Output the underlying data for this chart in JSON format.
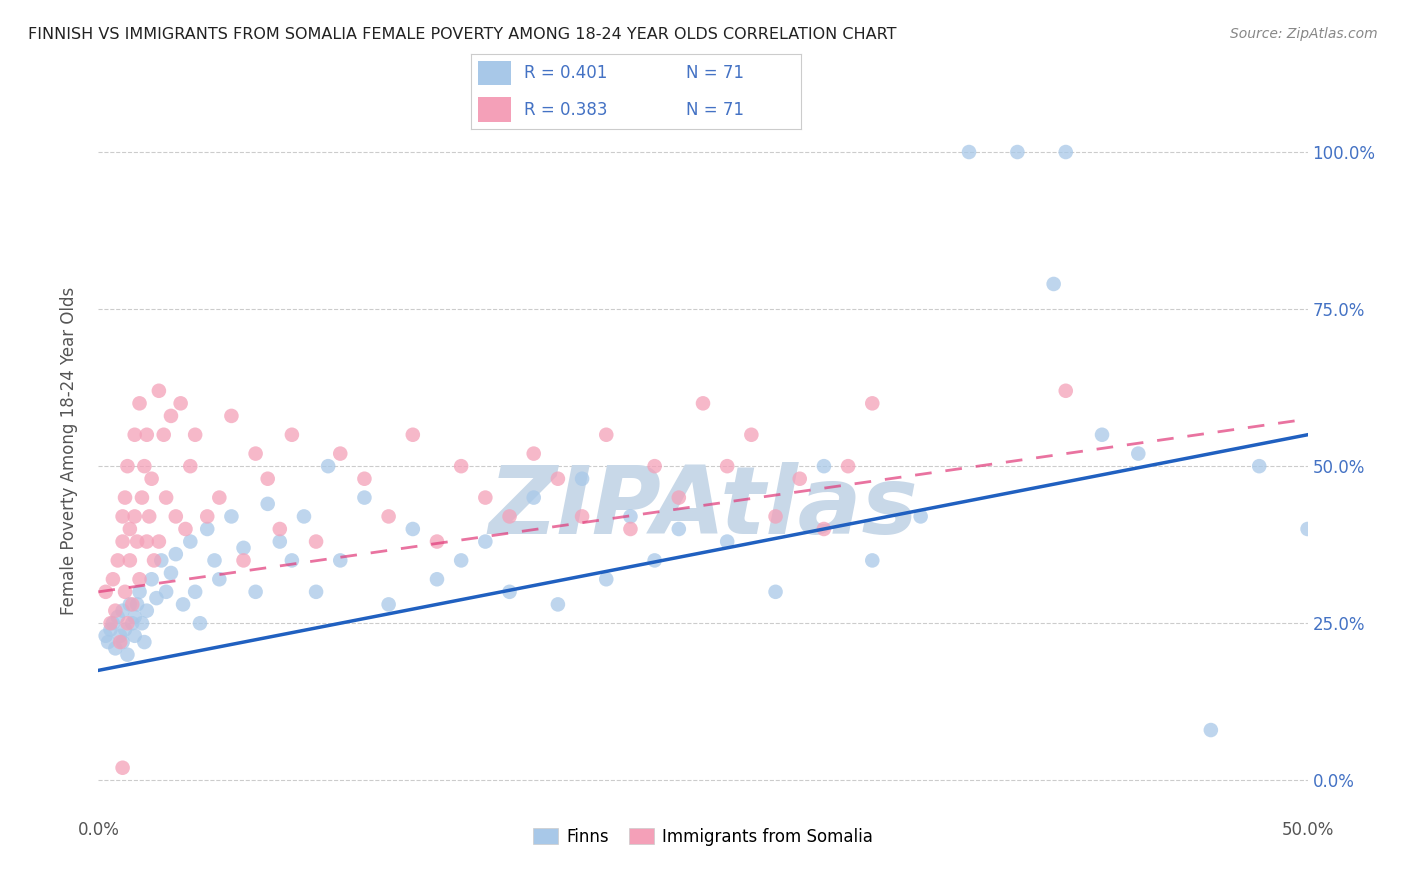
{
  "title": "FINNISH VS IMMIGRANTS FROM SOMALIA FEMALE POVERTY AMONG 18-24 YEAR OLDS CORRELATION CHART",
  "source": "Source: ZipAtlas.com",
  "ylabel": "Female Poverty Among 18-24 Year Olds",
  "xlim": [
    0.0,
    0.5
  ],
  "ylim": [
    -0.05,
    1.1
  ],
  "xticks": [
    0.0,
    0.1,
    0.2,
    0.3,
    0.4,
    0.5
  ],
  "xticklabels": [
    "0.0%",
    "",
    "",
    "",
    "",
    "50.0%"
  ],
  "yticks": [
    0.0,
    0.25,
    0.5,
    0.75,
    1.0
  ],
  "yticklabels": [
    "0.0%",
    "25.0%",
    "50.0%",
    "75.0%",
    "100.0%"
  ],
  "blue_color": "#a8c8e8",
  "pink_color": "#f4a0b8",
  "blue_line_color": "#2060c0",
  "pink_line_color": "#e03878",
  "watermark": "ZIPAtlas",
  "watermark_color": "#c8d8e8",
  "legend_r_blue": "R = 0.401",
  "legend_n_blue": "N = 71",
  "legend_r_pink": "R = 0.383",
  "legend_n_pink": "N = 71",
  "finns_x": [
    0.003,
    0.004,
    0.005,
    0.006,
    0.007,
    0.008,
    0.009,
    0.01,
    0.01,
    0.011,
    0.012,
    0.013,
    0.014,
    0.015,
    0.015,
    0.016,
    0.017,
    0.018,
    0.019,
    0.02,
    0.022,
    0.024,
    0.026,
    0.028,
    0.03,
    0.032,
    0.035,
    0.038,
    0.04,
    0.042,
    0.045,
    0.048,
    0.05,
    0.055,
    0.06,
    0.065,
    0.07,
    0.075,
    0.08,
    0.085,
    0.09,
    0.095,
    0.1,
    0.11,
    0.12,
    0.13,
    0.14,
    0.15,
    0.16,
    0.17,
    0.18,
    0.19,
    0.2,
    0.21,
    0.22,
    0.23,
    0.24,
    0.26,
    0.28,
    0.3,
    0.32,
    0.34,
    0.36,
    0.38,
    0.395,
    0.4,
    0.415,
    0.43,
    0.46,
    0.48,
    0.5
  ],
  "finns_y": [
    0.23,
    0.22,
    0.24,
    0.25,
    0.21,
    0.26,
    0.23,
    0.27,
    0.22,
    0.24,
    0.2,
    0.28,
    0.25,
    0.23,
    0.26,
    0.28,
    0.3,
    0.25,
    0.22,
    0.27,
    0.32,
    0.29,
    0.35,
    0.3,
    0.33,
    0.36,
    0.28,
    0.38,
    0.3,
    0.25,
    0.4,
    0.35,
    0.32,
    0.42,
    0.37,
    0.3,
    0.44,
    0.38,
    0.35,
    0.42,
    0.3,
    0.5,
    0.35,
    0.45,
    0.28,
    0.4,
    0.32,
    0.35,
    0.38,
    0.3,
    0.45,
    0.28,
    0.48,
    0.32,
    0.42,
    0.35,
    0.4,
    0.38,
    0.3,
    0.5,
    0.35,
    0.42,
    1.0,
    1.0,
    0.79,
    1.0,
    0.55,
    0.52,
    0.08,
    0.5,
    0.4
  ],
  "somalia_x": [
    0.003,
    0.005,
    0.006,
    0.007,
    0.008,
    0.009,
    0.01,
    0.01,
    0.011,
    0.011,
    0.012,
    0.012,
    0.013,
    0.013,
    0.014,
    0.015,
    0.015,
    0.016,
    0.017,
    0.017,
    0.018,
    0.019,
    0.02,
    0.02,
    0.021,
    0.022,
    0.023,
    0.025,
    0.025,
    0.027,
    0.028,
    0.03,
    0.032,
    0.034,
    0.036,
    0.038,
    0.04,
    0.045,
    0.05,
    0.055,
    0.06,
    0.065,
    0.07,
    0.075,
    0.08,
    0.09,
    0.1,
    0.11,
    0.12,
    0.13,
    0.14,
    0.15,
    0.16,
    0.17,
    0.18,
    0.19,
    0.2,
    0.21,
    0.22,
    0.23,
    0.24,
    0.25,
    0.26,
    0.27,
    0.28,
    0.29,
    0.3,
    0.31,
    0.32,
    0.4,
    0.01
  ],
  "somalia_y": [
    0.3,
    0.25,
    0.32,
    0.27,
    0.35,
    0.22,
    0.42,
    0.38,
    0.3,
    0.45,
    0.25,
    0.5,
    0.35,
    0.4,
    0.28,
    0.55,
    0.42,
    0.38,
    0.6,
    0.32,
    0.45,
    0.5,
    0.38,
    0.55,
    0.42,
    0.48,
    0.35,
    0.62,
    0.38,
    0.55,
    0.45,
    0.58,
    0.42,
    0.6,
    0.4,
    0.5,
    0.55,
    0.42,
    0.45,
    0.58,
    0.35,
    0.52,
    0.48,
    0.4,
    0.55,
    0.38,
    0.52,
    0.48,
    0.42,
    0.55,
    0.38,
    0.5,
    0.45,
    0.42,
    0.52,
    0.48,
    0.42,
    0.55,
    0.4,
    0.5,
    0.45,
    0.6,
    0.5,
    0.55,
    0.42,
    0.48,
    0.4,
    0.5,
    0.6,
    0.62,
    0.02
  ],
  "blue_intercept": 0.175,
  "blue_slope": 0.75,
  "pink_intercept": 0.3,
  "pink_slope": 0.55
}
